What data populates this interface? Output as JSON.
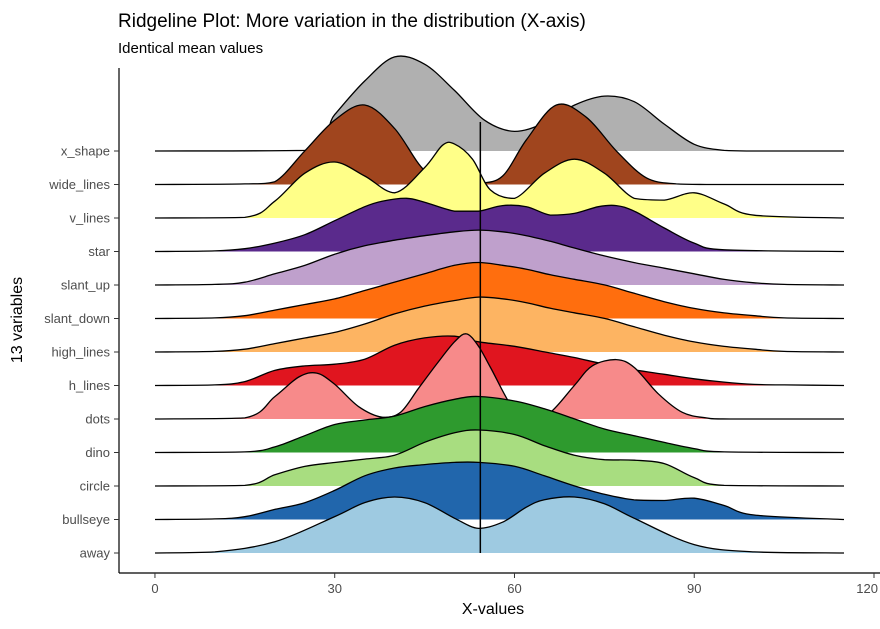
{
  "chart_data": {
    "type": "ridgeline",
    "title": "Ridgeline Plot: More variation in the distribution (X-axis)",
    "subtitle": "Identical mean values",
    "xlabel": "X-values",
    "ylabel": "13 variables",
    "xlim": [
      -6,
      121
    ],
    "x_ticks": [
      0,
      30,
      60,
      90,
      120
    ],
    "mean_line_x": 54.3,
    "x_range": [
      0,
      115
    ],
    "grid": false,
    "legend": "none",
    "series": [
      {
        "name": "away",
        "color": "#9ECAE1",
        "x": [
          0,
          10,
          20,
          30,
          35,
          40,
          45,
          50,
          54,
          58,
          62,
          65,
          70,
          75,
          80,
          90,
          100,
          115
        ],
        "density": [
          0,
          0.02,
          0.2,
          0.65,
          0.9,
          1.0,
          0.9,
          0.62,
          0.44,
          0.55,
          0.82,
          0.95,
          1.0,
          0.88,
          0.62,
          0.15,
          0.02,
          0
        ]
      },
      {
        "name": "bullseye",
        "color": "#2166AC",
        "x": [
          0,
          10,
          15,
          20,
          25,
          30,
          35,
          40,
          45,
          50,
          54,
          60,
          65,
          70,
          75,
          80,
          85,
          90,
          95,
          100,
          115
        ],
        "density": [
          0,
          0.01,
          0.05,
          0.18,
          0.3,
          0.52,
          0.78,
          0.92,
          0.98,
          1.02,
          1.02,
          0.95,
          0.78,
          0.6,
          0.45,
          0.35,
          0.34,
          0.38,
          0.25,
          0.08,
          0
        ]
      },
      {
        "name": "circle",
        "color": "#A8DD80",
        "x": [
          0,
          15,
          20,
          25,
          30,
          35,
          40,
          45,
          50,
          54,
          60,
          65,
          70,
          75,
          80,
          85,
          90,
          95,
          115
        ],
        "density": [
          0,
          0.01,
          0.2,
          0.35,
          0.42,
          0.48,
          0.55,
          0.78,
          0.95,
          1.0,
          0.92,
          0.72,
          0.55,
          0.47,
          0.46,
          0.4,
          0.15,
          0.01,
          0
        ]
      },
      {
        "name": "dino",
        "color": "#2E9A2E",
        "x": [
          0,
          15,
          20,
          25,
          30,
          35,
          40,
          45,
          50,
          54,
          60,
          65,
          70,
          75,
          80,
          85,
          90,
          95,
          115
        ],
        "density": [
          0,
          0.01,
          0.1,
          0.3,
          0.5,
          0.58,
          0.65,
          0.82,
          0.95,
          1.0,
          0.92,
          0.78,
          0.6,
          0.42,
          0.3,
          0.18,
          0.07,
          0.01,
          0
        ]
      },
      {
        "name": "dots",
        "color": "#F78A8A",
        "x": [
          0,
          15,
          20,
          24,
          27,
          30,
          34,
          38,
          41,
          44,
          47,
          50,
          52,
          54,
          56,
          60,
          63,
          66,
          70,
          73,
          77,
          80,
          84,
          88,
          92,
          96,
          115
        ],
        "density": [
          0,
          0.02,
          0.4,
          0.75,
          0.82,
          0.62,
          0.22,
          0.03,
          0.12,
          0.55,
          0.98,
          1.38,
          1.52,
          1.3,
          0.92,
          0.15,
          0.05,
          0.12,
          0.6,
          0.95,
          1.06,
          0.92,
          0.45,
          0.12,
          0.02,
          0,
          0
        ]
      },
      {
        "name": "h_lines",
        "color": "#E0151F",
        "x": [
          0,
          10,
          15,
          20,
          25,
          30,
          35,
          40,
          45,
          50,
          54,
          60,
          65,
          70,
          75,
          80,
          85,
          90,
          95,
          100,
          105,
          115
        ],
        "density": [
          0,
          0.01,
          0.07,
          0.27,
          0.35,
          0.38,
          0.47,
          0.72,
          0.85,
          0.88,
          0.78,
          0.7,
          0.6,
          0.5,
          0.38,
          0.28,
          0.2,
          0.12,
          0.06,
          0.02,
          0.01,
          0
        ]
      },
      {
        "name": "high_lines",
        "color": "#FDB462",
        "x": [
          0,
          10,
          15,
          20,
          25,
          30,
          35,
          40,
          45,
          50,
          54,
          58,
          62,
          66,
          70,
          75,
          80,
          85,
          90,
          95,
          100,
          105,
          115
        ],
        "density": [
          0,
          0.01,
          0.05,
          0.15,
          0.25,
          0.35,
          0.5,
          0.68,
          0.82,
          0.92,
          0.98,
          0.95,
          0.88,
          0.78,
          0.7,
          0.6,
          0.45,
          0.3,
          0.18,
          0.1,
          0.05,
          0.01,
          0
        ]
      },
      {
        "name": "slant_down",
        "color": "#FF6E0E",
        "x": [
          0,
          10,
          15,
          20,
          25,
          30,
          35,
          40,
          45,
          50,
          54,
          58,
          62,
          66,
          70,
          75,
          80,
          85,
          90,
          95,
          100,
          105,
          115
        ],
        "density": [
          0,
          0.01,
          0.05,
          0.15,
          0.25,
          0.35,
          0.5,
          0.65,
          0.8,
          0.95,
          1.0,
          0.95,
          0.88,
          0.78,
          0.7,
          0.6,
          0.45,
          0.3,
          0.18,
          0.1,
          0.05,
          0.01,
          0
        ]
      },
      {
        "name": "slant_up",
        "color": "#BFA0CC",
        "x": [
          0,
          10,
          15,
          20,
          25,
          30,
          35,
          40,
          45,
          50,
          54,
          58,
          62,
          66,
          70,
          75,
          80,
          85,
          90,
          95,
          100,
          105,
          115
        ],
        "density": [
          0,
          0.01,
          0.05,
          0.2,
          0.35,
          0.55,
          0.7,
          0.8,
          0.88,
          0.95,
          0.98,
          0.95,
          0.88,
          0.78,
          0.66,
          0.52,
          0.4,
          0.3,
          0.2,
          0.1,
          0.04,
          0.01,
          0
        ]
      },
      {
        "name": "star",
        "color": "#5A2A8C",
        "x": [
          0,
          10,
          15,
          20,
          25,
          30,
          35,
          38,
          42,
          45,
          50,
          54,
          58,
          62,
          66,
          70,
          74,
          77,
          80,
          85,
          90,
          95,
          115
        ],
        "density": [
          0,
          0.01,
          0.05,
          0.15,
          0.3,
          0.55,
          0.8,
          0.9,
          0.95,
          0.88,
          0.72,
          0.72,
          0.82,
          0.8,
          0.65,
          0.68,
          0.8,
          0.82,
          0.72,
          0.42,
          0.15,
          0.03,
          0
        ]
      },
      {
        "name": "v_lines",
        "color": "#FFFF88",
        "x": [
          0,
          15,
          20,
          25,
          30,
          35,
          40,
          45,
          48,
          50,
          53,
          56,
          60,
          65,
          70,
          75,
          80,
          85,
          90,
          95,
          100,
          115
        ],
        "density": [
          0,
          0.01,
          0.3,
          0.8,
          1.0,
          0.75,
          0.45,
          0.9,
          1.3,
          1.32,
          1.05,
          0.5,
          0.35,
          0.8,
          1.05,
          0.8,
          0.35,
          0.32,
          0.45,
          0.25,
          0.05,
          0
        ]
      },
      {
        "name": "wide_lines",
        "color": "#A0451E",
        "x": [
          0,
          15,
          20,
          25,
          30,
          35,
          40,
          45,
          50,
          54,
          58,
          62,
          67,
          72,
          77,
          82,
          87,
          92,
          97,
          115
        ],
        "density": [
          0,
          0.01,
          0.05,
          0.6,
          1.15,
          1.42,
          1.0,
          0.25,
          0.02,
          0.02,
          0.15,
          0.8,
          1.42,
          1.2,
          0.6,
          0.12,
          0.01,
          0,
          0,
          0
        ]
      },
      {
        "name": "x_shape",
        "color": "#B0B0B0",
        "x": [
          0,
          25,
          30,
          35,
          40,
          45,
          50,
          55,
          60,
          65,
          70,
          75,
          80,
          85,
          90,
          95,
          100,
          115
        ],
        "density": [
          0,
          0.01,
          0.65,
          1.25,
          1.68,
          1.55,
          1.08,
          0.55,
          0.35,
          0.5,
          0.82,
          0.98,
          0.88,
          0.48,
          0.12,
          0.01,
          0,
          0
        ]
      }
    ]
  }
}
